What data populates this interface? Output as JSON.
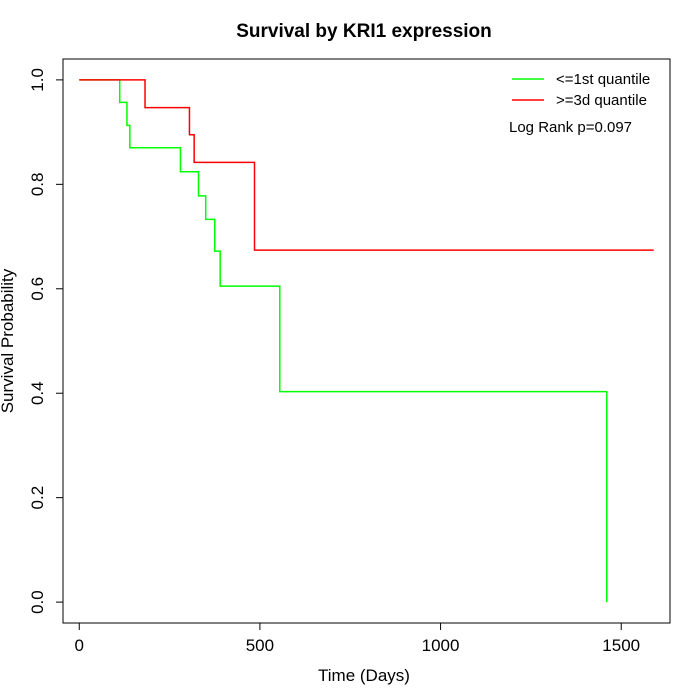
{
  "chart_data": {
    "type": "line",
    "title": "Survival by KRI1 expression",
    "xlabel": "Time (Days)",
    "ylabel": "Survival Probability",
    "xlim": [
      -45,
      1635
    ],
    "ylim": [
      -0.04,
      1.04
    ],
    "xticks": [
      0,
      500,
      1000,
      1500
    ],
    "xtick_labels": [
      "0",
      "500",
      "1000",
      "1500"
    ],
    "yticks": [
      0.0,
      0.2,
      0.4,
      0.6,
      0.8,
      1.0
    ],
    "ytick_labels": [
      "0.0",
      "0.2",
      "0.4",
      "0.6",
      "0.8",
      "1.0"
    ],
    "grid": false,
    "legend_position": "top-right",
    "annotation": "Log Rank p=0.097",
    "series": [
      {
        "name": "<=1st quantile",
        "color": "#00ff00",
        "step": true,
        "x": [
          0,
          112,
          132,
          140,
          280,
          330,
          350,
          375,
          390,
          555,
          1460,
          1460
        ],
        "y": [
          1.0,
          0.957,
          0.913,
          0.87,
          0.824,
          0.778,
          0.733,
          0.672,
          0.605,
          0.403,
          0.403,
          0.0
        ]
      },
      {
        "name": ">=3d quantile",
        "color": "#ff0000",
        "step": true,
        "x": [
          0,
          182,
          305,
          318,
          485,
          1590
        ],
        "y": [
          1.0,
          0.947,
          0.895,
          0.842,
          0.674,
          0.674
        ]
      }
    ]
  }
}
